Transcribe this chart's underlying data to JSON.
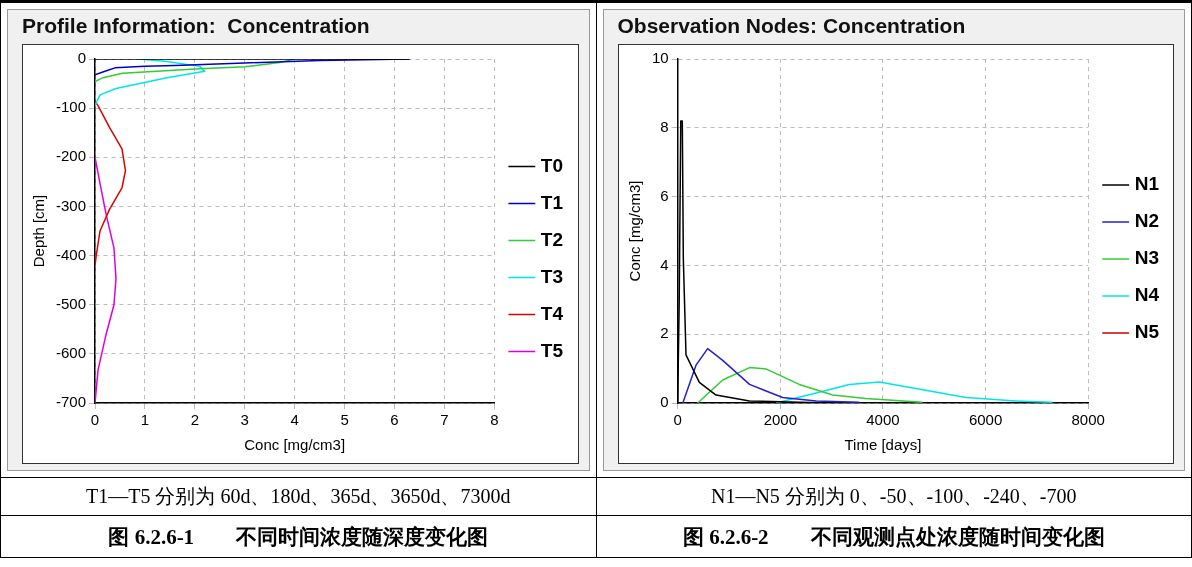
{
  "chart_data": [
    {
      "type": "line",
      "title": "Profile Information:  Concentration",
      "xlabel": "Conc [mg/cm3]",
      "ylabel": "Depth [cm]",
      "xlim": [
        0,
        8
      ],
      "xticks": [
        0,
        1,
        2,
        3,
        4,
        5,
        6,
        7,
        8
      ],
      "ylim": [
        -700,
        0
      ],
      "yticks": [
        -700,
        -600,
        -500,
        -400,
        -300,
        -200,
        -100,
        0
      ],
      "grid": true,
      "legend": "right",
      "marker": "none",
      "line_style": "solid",
      "annotations": [
        "T1—T5 分别为 60d、180d、365d、3650d、7300d",
        "图 6.2.6-1　　不同时间浓度随深度变化图"
      ],
      "series": [
        {
          "name": "T0",
          "color": "#000000",
          "x": [
            0,
            6.3
          ],
          "values": [
            0,
            0
          ]
        },
        {
          "name": "T1",
          "color": "#0000cc",
          "x": [
            0,
            0.2,
            0.4,
            1,
            1.6,
            3,
            4.5,
            6.3
          ],
          "values": [
            -32,
            -25,
            -18,
            -15,
            -13,
            -8,
            -3,
            0
          ]
        },
        {
          "name": "T2",
          "color": "#33cc33",
          "x": [
            0,
            0.16,
            0.55,
            2.1,
            3,
            3.7,
            4
          ],
          "values": [
            -46,
            -38,
            -29,
            -20,
            -16,
            -7,
            0
          ]
        },
        {
          "name": "T3",
          "color": "#00e5e5",
          "x": [
            0,
            0.1,
            0.42,
            1.44,
            2.2,
            2.1,
            1.44,
            0.87
          ],
          "values": [
            -95,
            -73,
            -60,
            -38,
            -25,
            -15,
            -5,
            0
          ]
        },
        {
          "name": "T4",
          "color": "#dd0000",
          "x": [
            0,
            0.06,
            0.29,
            0.54,
            0.61,
            0.54,
            0.29,
            0.1,
            0.02,
            0
          ],
          "values": [
            -86,
            -95,
            -139,
            -183,
            -227,
            -262,
            -306,
            -350,
            -403,
            -420
          ]
        },
        {
          "name": "T5",
          "color": "#dd00dd",
          "x": [
            0,
            0.1,
            0.22,
            0.38,
            0.42,
            0.38,
            0.22,
            0.06,
            0
          ],
          "values": [
            -200,
            -253,
            -315,
            -385,
            -447,
            -500,
            -561,
            -633,
            -700
          ]
        }
      ]
    },
    {
      "type": "line",
      "title": "Observation Nodes: Concentration",
      "xlabel": "Time [days]",
      "ylabel": "Conc [mg/cm3]",
      "xlim": [
        0,
        8000
      ],
      "xticks": [
        0,
        2000,
        4000,
        6000,
        8000
      ],
      "ylim": [
        0,
        10
      ],
      "yticks": [
        0,
        2,
        4,
        6,
        8,
        10
      ],
      "grid": true,
      "legend": "right",
      "marker": "none",
      "line_style": "solid",
      "annotations": [
        "N1—N5 分别为 0、-50、-100、-240、-700",
        "图 6.2.6-2　　不同观测点处浓度随时间变化图"
      ],
      "series": [
        {
          "name": "N1",
          "color": "#000000",
          "x": [
            0,
            30,
            60,
            90,
            110,
            162,
            422,
            747,
            1400,
            2370,
            3000
          ],
          "values": [
            0,
            3,
            8.2,
            8.2,
            4.2,
            1.4,
            0.6,
            0.23,
            0.06,
            0.02,
            0
          ]
        },
        {
          "name": "N2",
          "color": "#2222cc",
          "x": [
            100,
            357,
            584,
            877,
            1400,
            2045,
            2700,
            3540
          ],
          "values": [
            0,
            1.1,
            1.58,
            1.24,
            0.54,
            0.16,
            0.06,
            0.02
          ]
        },
        {
          "name": "N3",
          "color": "#33cc33",
          "x": [
            390,
            877,
            1400,
            1720,
            2370,
            3020,
            3670,
            4770
          ],
          "values": [
            0,
            0.67,
            1.03,
            0.99,
            0.54,
            0.23,
            0.13,
            0.02
          ]
        },
        {
          "name": "N4",
          "color": "#00e5e5",
          "x": [
            1915,
            2700,
            3345,
            3930,
            4640,
            5620,
            6590,
            7300
          ],
          "values": [
            0,
            0.29,
            0.54,
            0.61,
            0.42,
            0.16,
            0.06,
            0.02
          ]
        },
        {
          "name": "N5",
          "color": "#cc0000"
        }
      ]
    }
  ]
}
